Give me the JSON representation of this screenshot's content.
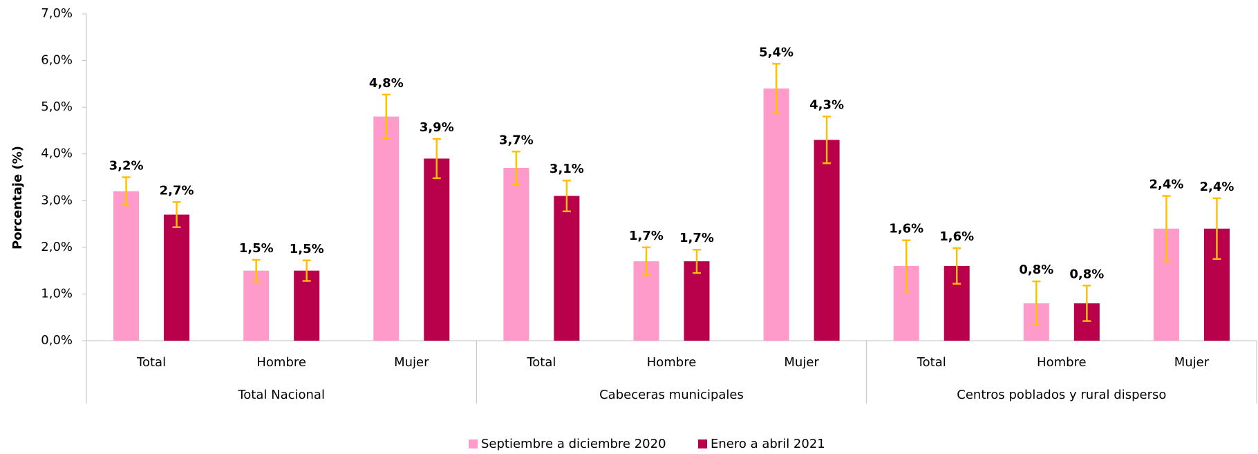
{
  "chart_data": {
    "type": "bar",
    "y_label": "Porcentaje (%)",
    "groups": [
      "Total Nacional",
      "Cabeceras municipales",
      "Centros poblados y rural disperso"
    ],
    "categories": [
      "Total",
      "Hombre",
      "Mujer",
      "Total",
      "Hombre",
      "Mujer",
      "Total",
      "Hombre",
      "Mujer"
    ],
    "series": [
      {
        "name": "Septiembre a diciembre 2020",
        "color": "#ff9bcb",
        "values": [
          3.2,
          1.5,
          4.8,
          3.7,
          1.7,
          5.4,
          1.6,
          0.8,
          2.4
        ],
        "value_labels": [
          "3,2%",
          "1,5%",
          "4,8%",
          "3,7%",
          "1,7%",
          "5,4%",
          "1,6%",
          "0,8%",
          "2,4%"
        ],
        "errors": [
          0.3,
          0.23,
          0.47,
          0.35,
          0.3,
          0.53,
          0.55,
          0.47,
          0.7
        ]
      },
      {
        "name": "Enero a abril 2021",
        "color": "#b8004b",
        "values": [
          2.7,
          1.5,
          3.9,
          3.1,
          1.7,
          4.3,
          1.6,
          0.8,
          2.4
        ],
        "value_labels": [
          "2,7%",
          "1,5%",
          "3,9%",
          "3,1%",
          "1,7%",
          "4,3%",
          "1,6%",
          "0,8%",
          "2,4%"
        ],
        "errors": [
          0.27,
          0.22,
          0.42,
          0.33,
          0.25,
          0.5,
          0.38,
          0.38,
          0.65
        ]
      }
    ],
    "error_color": "#ffc000",
    "ylim": [
      0,
      7
    ],
    "yticks": [
      {
        "value": 0,
        "label": "0,0%"
      },
      {
        "value": 1,
        "label": "1,0%"
      },
      {
        "value": 2,
        "label": "2,0%"
      },
      {
        "value": 3,
        "label": "3,0%"
      },
      {
        "value": 4,
        "label": "4,0%"
      },
      {
        "value": 5,
        "label": "5,0%"
      },
      {
        "value": 6,
        "label": "6,0%"
      },
      {
        "value": 7,
        "label": "7,0%"
      }
    ],
    "legend": "bottom"
  }
}
